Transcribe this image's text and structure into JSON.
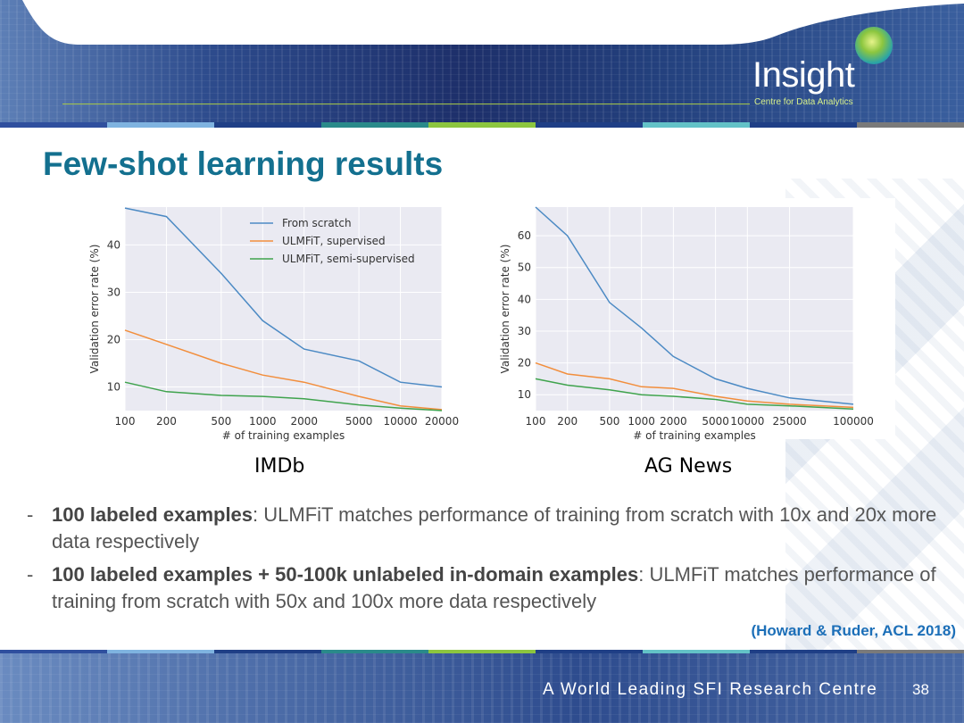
{
  "slide": {
    "title": "Few-shot learning results",
    "logo": {
      "word": "Insight",
      "subtitle": "Centre for Data Analytics"
    },
    "captions": [
      "IMDb",
      "AG News"
    ],
    "bullets": [
      {
        "bold": "100 labeled examples",
        "rest": ": ULMFiT matches performance of training from scratch with 10x and 20x more data respectively"
      },
      {
        "bold": "100 labeled examples + 50-100k unlabeled in-domain examples",
        "rest": ": ULMFiT matches performance of training from scratch with 50x and 100x more data respectively"
      }
    ],
    "citation": "(Howard & Ruder, ACL 2018)",
    "footer": "A World Leading SFI Research Centre",
    "page_number": "38"
  },
  "colors": {
    "title": "#13708f",
    "bar_segments": [
      "#2f4f9e",
      "#7fb3e0",
      "#1f3f86",
      "#2a8a8a",
      "#8cc63f",
      "#1f3f86",
      "#63c2c7",
      "#1f3f86",
      "#7a7a7a"
    ],
    "series": [
      "#4c8ac4",
      "#f28e3c",
      "#3fa34d"
    ]
  },
  "chart_data": [
    {
      "type": "line",
      "title": "",
      "xlabel": "# of training examples",
      "ylabel": "Validation error rate (%)",
      "xscale": "log",
      "xlim": [
        100,
        20000
      ],
      "ylim": [
        5,
        48
      ],
      "yticks": [
        10,
        20,
        30,
        40
      ],
      "xticks": [
        {
          "value": 100,
          "label": "100"
        },
        {
          "value": 200,
          "label": "200"
        },
        {
          "value": 500,
          "label": "500"
        },
        {
          "value": 1000,
          "label": "1000"
        },
        {
          "value": 2000,
          "label": "2000"
        },
        {
          "value": 5000,
          "label": "5000"
        },
        {
          "value": 10000,
          "label": "10000"
        },
        {
          "value": 20000,
          "label": "20000"
        }
      ],
      "grid": true,
      "legend": "top-right",
      "x": [
        100,
        200,
        500,
        1000,
        2000,
        5000,
        10000,
        20000
      ],
      "series": [
        {
          "name": "From scratch",
          "values": [
            47.8,
            46,
            34,
            24,
            18,
            15.5,
            11,
            10
          ]
        },
        {
          "name": "ULMFiT, supervised",
          "values": [
            22,
            19,
            15,
            12.5,
            11,
            8,
            6,
            5.2
          ]
        },
        {
          "name": "ULMFiT, semi-supervised",
          "values": [
            11,
            9,
            8.2,
            8,
            7.5,
            6.2,
            5.5,
            5
          ]
        }
      ]
    },
    {
      "type": "line",
      "title": "",
      "xlabel": "# of training examples",
      "ylabel": "Validation error rate (%)",
      "xscale": "log",
      "xlim": [
        100,
        100000
      ],
      "ylim": [
        5,
        69
      ],
      "yticks": [
        10,
        20,
        30,
        40,
        50,
        60
      ],
      "xticks": [
        {
          "value": 100,
          "label": "100"
        },
        {
          "value": 200,
          "label": "200"
        },
        {
          "value": 500,
          "label": "500"
        },
        {
          "value": 1000,
          "label": "1000"
        },
        {
          "value": 2000,
          "label": "2000"
        },
        {
          "value": 5000,
          "label": "5000"
        },
        {
          "value": 10000,
          "label": "10000"
        },
        {
          "value": 25000,
          "label": "25000"
        },
        {
          "value": 100000,
          "label": "100000"
        }
      ],
      "grid": true,
      "legend": "none",
      "x": [
        100,
        200,
        500,
        1000,
        2000,
        5000,
        10000,
        25000,
        100000
      ],
      "series": [
        {
          "values": [
            69,
            60,
            39,
            31,
            22,
            15,
            12,
            9,
            7
          ]
        },
        {
          "values": [
            20,
            16.5,
            15,
            12.5,
            12,
            9.5,
            8,
            7,
            6
          ]
        },
        {
          "values": [
            15,
            13,
            11.5,
            10,
            9.5,
            8.5,
            7,
            6.5,
            5.5
          ]
        }
      ]
    }
  ]
}
